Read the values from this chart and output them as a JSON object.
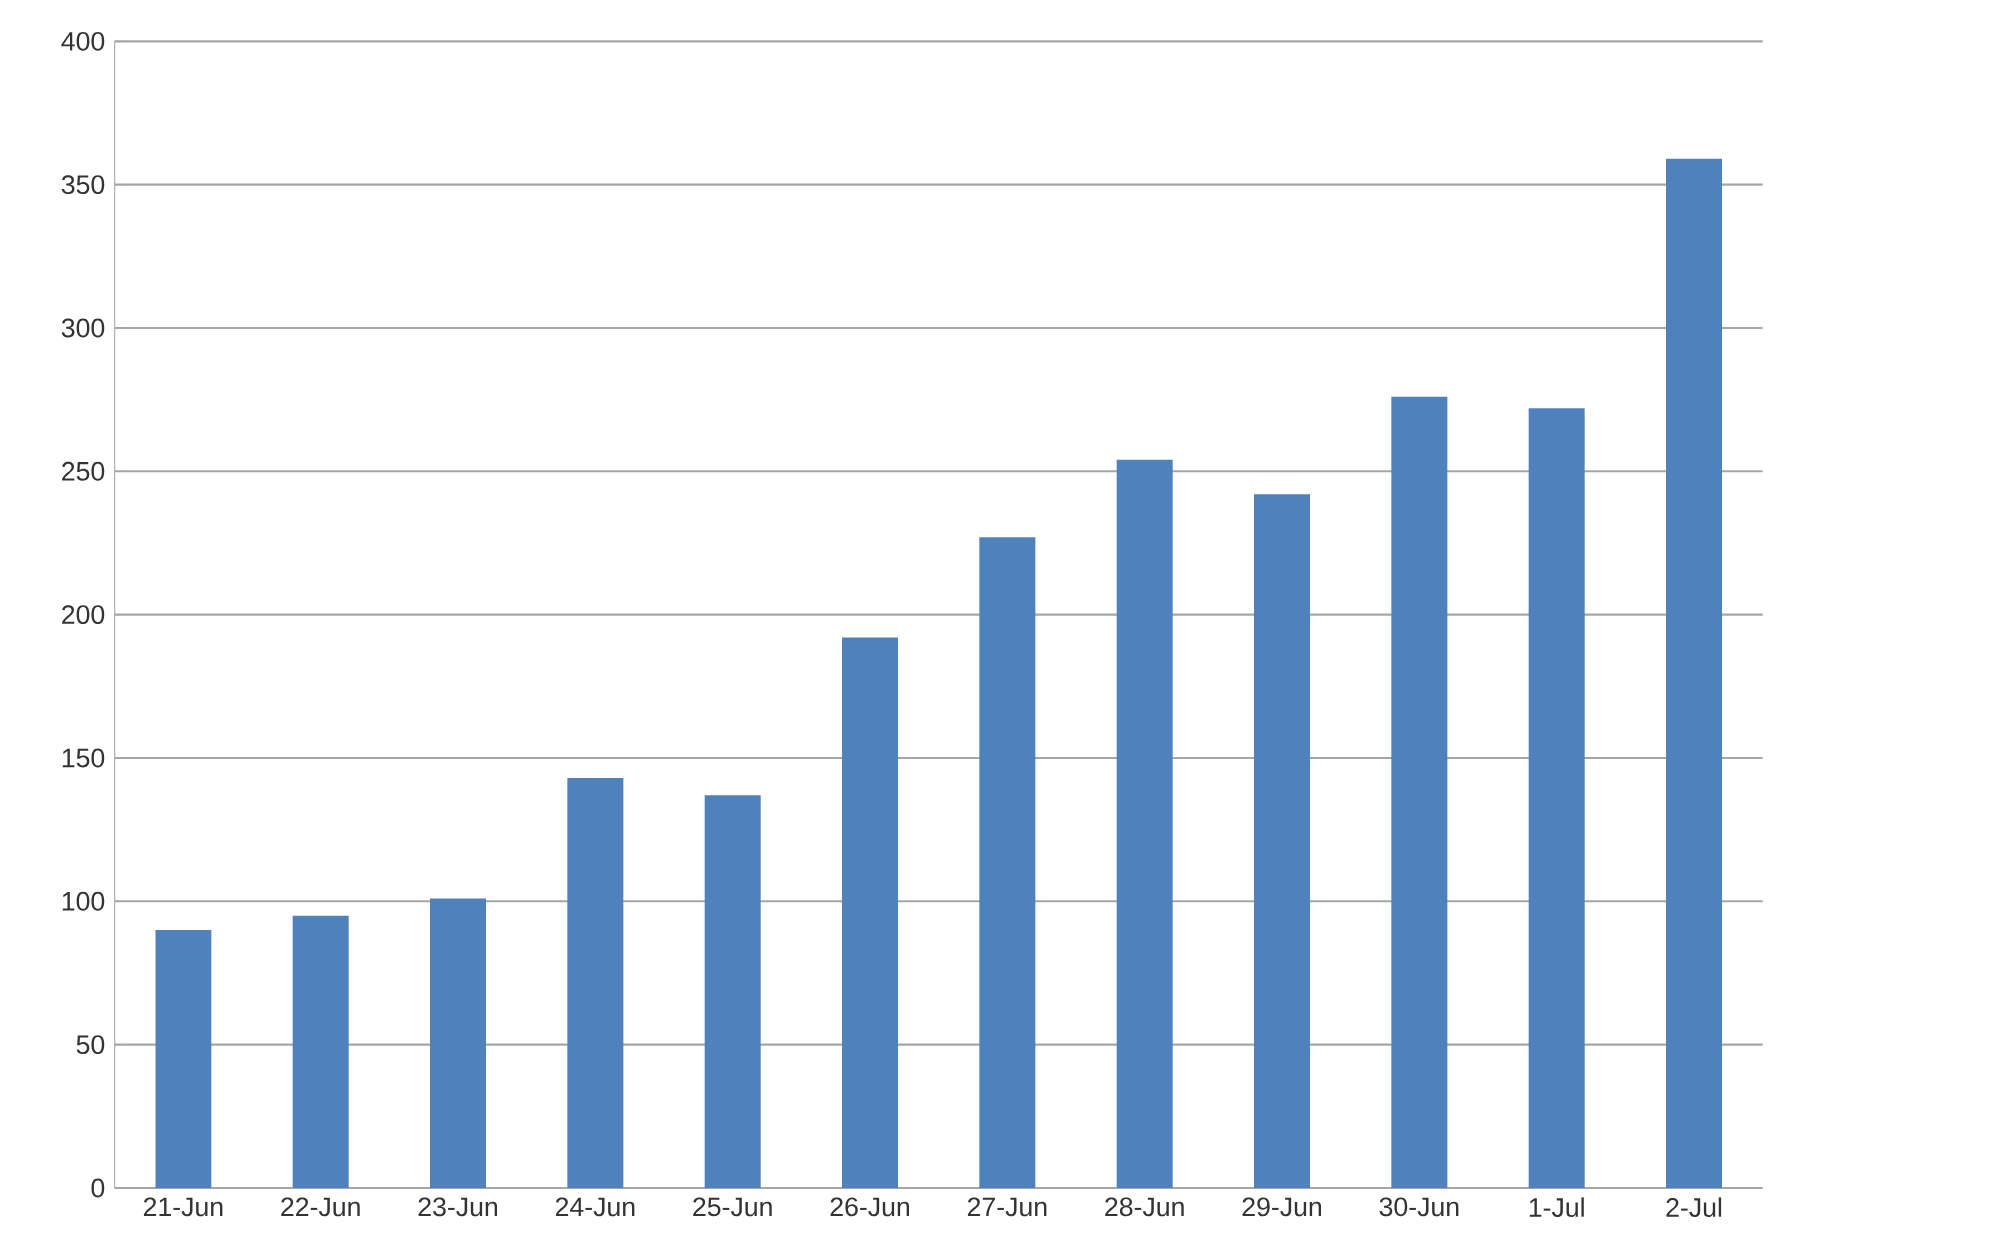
{
  "chart_data": {
    "type": "bar",
    "categories": [
      "21-Jun",
      "22-Jun",
      "23-Jun",
      "24-Jun",
      "25-Jun",
      "26-Jun",
      "27-Jun",
      "28-Jun",
      "29-Jun",
      "30-Jun",
      "1-Jul",
      "2-Jul"
    ],
    "values": [
      90,
      95,
      101,
      143,
      137,
      192,
      227,
      254,
      242,
      276,
      272,
      359
    ],
    "color": "#4f81bd",
    "ylim": [
      0,
      400
    ],
    "yticks": [
      0,
      50,
      100,
      150,
      200,
      250,
      300,
      350,
      400
    ],
    "grid": "y"
  }
}
